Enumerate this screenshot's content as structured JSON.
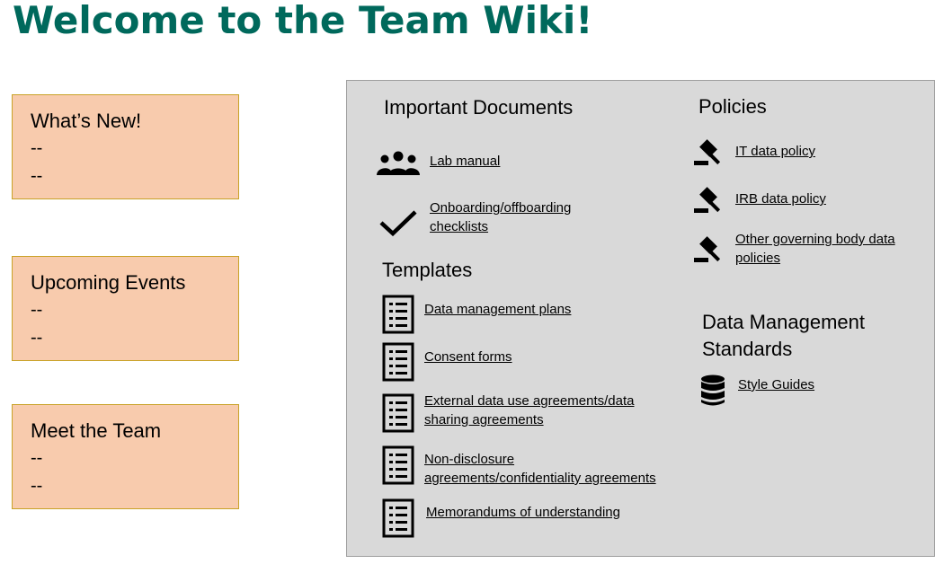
{
  "page": {
    "title": "Welcome to the Team Wiki!"
  },
  "cards": [
    {
      "title": "What’s New!",
      "lines": [
        "--",
        "--"
      ]
    },
    {
      "title": "Upcoming Events",
      "lines": [
        "--",
        "--"
      ]
    },
    {
      "title": "Meet the Team",
      "lines": [
        "--",
        "--"
      ]
    }
  ],
  "important_documents": {
    "heading": "Important Documents",
    "items": [
      {
        "label": "Lab manual",
        "icon": "people-group-icon"
      },
      {
        "label": "Onboarding/offboarding",
        "label2": "checklists",
        "icon": "checkmark-icon"
      }
    ]
  },
  "templates": {
    "heading": "Templates",
    "icon": "document-list-icon",
    "items": [
      {
        "label": "Data management plans"
      },
      {
        "label": "Consent forms"
      },
      {
        "label": "External data use agreements/data",
        "label2": "sharing agreements"
      },
      {
        "label": "Non-disclosure",
        "label2": "agreements/confidentiality agreements"
      },
      {
        "label": "Memorandums of understanding"
      }
    ]
  },
  "policies": {
    "heading": "Policies",
    "icon": "gavel-icon",
    "items": [
      {
        "label": "IT data policy"
      },
      {
        "label": "IRB data policy"
      },
      {
        "label": "Other governing body data",
        "label2": "policies"
      }
    ]
  },
  "standards": {
    "heading_line1": "Data Management",
    "heading_line2": "Standards",
    "items": [
      {
        "label": "Style Guides",
        "icon": "database-icon"
      }
    ]
  }
}
